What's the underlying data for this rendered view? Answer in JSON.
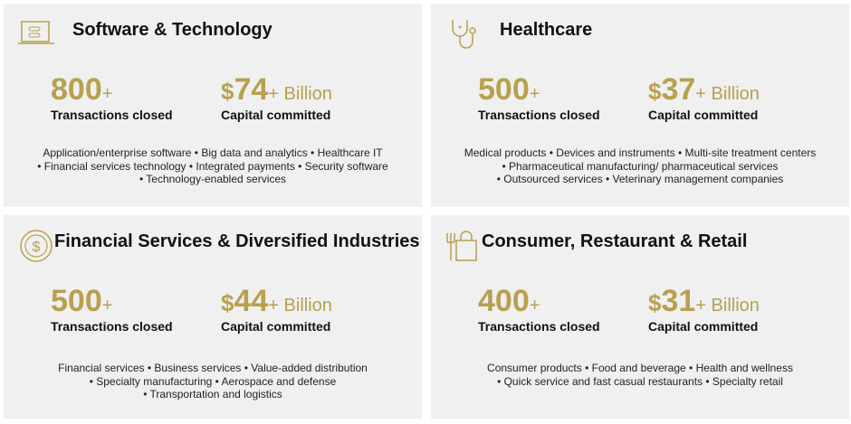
{
  "panels": [
    {
      "title": "Software & Technology",
      "transactions": {
        "value": "800",
        "suffix": "+",
        "label": "Transactions closed"
      },
      "capital": {
        "prefix": "$",
        "value": "74",
        "suffix": "+ Billion",
        "label": "Capital committed"
      },
      "sector_lines": [
        "Application/enterprise software • Big data and analytics • Healthcare IT",
        "• Financial services technology • Integrated payments • Security software",
        "• Technology-enabled services"
      ]
    },
    {
      "title": "Healthcare",
      "transactions": {
        "value": "500",
        "suffix": "+",
        "label": "Transactions closed"
      },
      "capital": {
        "prefix": "$",
        "value": "37",
        "suffix": "+ Billion",
        "label": "Capital committed"
      },
      "sector_lines": [
        "Medical products • Devices and instruments • Multi-site treatment centers",
        "• Pharmaceutical manufacturing/ pharmaceutical services",
        "• Outsourced services • Veterinary management companies"
      ]
    },
    {
      "title": "Financial Services & Diversified Industries",
      "transactions": {
        "value": "500",
        "suffix": "+",
        "label": "Transactions closed"
      },
      "capital": {
        "prefix": "$",
        "value": "44",
        "suffix": "+ Billion",
        "label": "Capital committed"
      },
      "sector_lines": [
        "Financial services • Business services • Value-added distribution",
        "• Specialty manufacturing • Aerospace and defense",
        "• Transportation and logistics"
      ]
    },
    {
      "title": "Consumer, Restaurant & Retail",
      "transactions": {
        "value": "400",
        "suffix": "+",
        "label": "Transactions closed"
      },
      "capital": {
        "prefix": "$",
        "value": "31",
        "suffix": "+ Billion",
        "label": "Capital committed"
      },
      "sector_lines": [
        "Consumer products • Food and beverage • Health and wellness",
        "• Quick service and fast casual restaurants • Specialty retail"
      ]
    }
  ]
}
